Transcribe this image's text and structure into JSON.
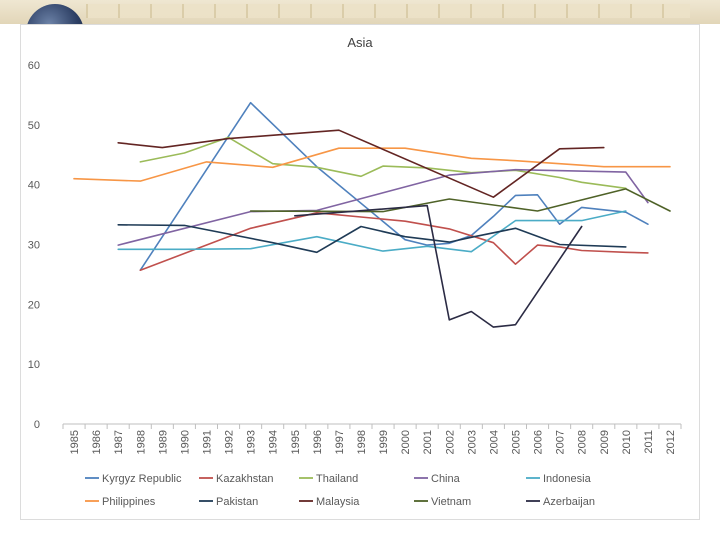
{
  "chart_data": {
    "type": "line",
    "title": "Asia",
    "xlabel": "",
    "ylabel": "",
    "ylim": [
      0,
      60
    ],
    "yticks": [
      "0",
      "10",
      "20",
      "30",
      "40",
      "50",
      "60"
    ],
    "x": [
      "1985",
      "1986",
      "1987",
      "1988",
      "1989",
      "1990",
      "1991",
      "1992",
      "1993",
      "1994",
      "1995",
      "1996",
      "1997",
      "1998",
      "1999",
      "2000",
      "2001",
      "2002",
      "2003",
      "2004",
      "2005",
      "2006",
      "2007",
      "2008",
      "2009",
      "2010",
      "2011",
      "2012"
    ],
    "grid": false,
    "legend_position": "bottom",
    "series": [
      {
        "name": "Kyrgyz Republic",
        "color": "#4f81bd",
        "values": [
          null,
          null,
          null,
          25.7,
          null,
          null,
          null,
          null,
          53.7,
          null,
          null,
          43.0,
          null,
          null,
          null,
          30.8,
          29.9,
          30.2,
          31.5,
          34.7,
          38.2,
          38.3,
          33.4,
          36.2,
          null,
          35.4,
          33.4,
          null
        ]
      },
      {
        "name": "Kazakhstan",
        "color": "#c0504d",
        "values": [
          null,
          null,
          null,
          25.7,
          null,
          null,
          null,
          null,
          32.7,
          null,
          null,
          35.3,
          null,
          null,
          null,
          33.9,
          null,
          32.6,
          null,
          30.3,
          26.7,
          29.9,
          29.6,
          29.0,
          null,
          28.7,
          28.6,
          null
        ]
      },
      {
        "name": "Thailand",
        "color": "#9bbb59",
        "values": [
          null,
          null,
          null,
          43.8,
          null,
          45.3,
          null,
          47.9,
          null,
          43.5,
          null,
          42.9,
          null,
          41.4,
          43.1,
          null,
          42.8,
          null,
          42.0,
          null,
          42.4,
          null,
          41.2,
          40.4,
          null,
          39.4,
          null,
          null
        ]
      },
      {
        "name": "China",
        "color": "#8064a2",
        "values": [
          null,
          null,
          29.9,
          null,
          null,
          null,
          null,
          null,
          35.5,
          null,
          null,
          35.7,
          null,
          null,
          null,
          null,
          null,
          41.6,
          null,
          null,
          42.5,
          null,
          null,
          null,
          null,
          42.1,
          37.0,
          null
        ]
      },
      {
        "name": "Indonesia",
        "color": "#4bacc6",
        "values": [
          null,
          null,
          29.2,
          null,
          null,
          29.2,
          null,
          null,
          29.3,
          null,
          null,
          31.3,
          null,
          null,
          28.9,
          null,
          29.7,
          null,
          28.8,
          null,
          34.0,
          null,
          34.0,
          34.0,
          null,
          35.6,
          null,
          null
        ]
      },
      {
        "name": "Philippines",
        "color": "#f79646",
        "values": [
          41.0,
          null,
          null,
          40.6,
          null,
          null,
          43.8,
          null,
          null,
          42.9,
          null,
          null,
          46.1,
          null,
          null,
          46.1,
          null,
          null,
          44.4,
          null,
          44.0,
          null,
          null,
          null,
          43.0,
          43.0,
          null,
          43.0
        ]
      },
      {
        "name": "Pakistan",
        "color": "#1f3b56",
        "values": [
          null,
          null,
          33.3,
          null,
          null,
          33.2,
          null,
          null,
          null,
          30.3,
          null,
          28.7,
          null,
          33.0,
          null,
          31.3,
          null,
          30.4,
          31.2,
          null,
          32.7,
          null,
          30.0,
          null,
          null,
          29.6,
          null,
          null
        ]
      },
      {
        "name": "Malaysia",
        "color": "#632523",
        "values": [
          null,
          null,
          47.0,
          null,
          46.2,
          null,
          null,
          47.7,
          null,
          null,
          null,
          null,
          49.1,
          null,
          null,
          null,
          null,
          null,
          null,
          37.9,
          null,
          null,
          46.0,
          null,
          46.2,
          null,
          null,
          null
        ]
      },
      {
        "name": "Vietnam",
        "color": "#4f6228",
        "values": [
          null,
          null,
          null,
          null,
          null,
          null,
          null,
          null,
          35.6,
          null,
          null,
          null,
          null,
          null,
          35.5,
          null,
          null,
          37.6,
          null,
          null,
          null,
          35.6,
          null,
          null,
          null,
          39.3,
          null,
          35.6
        ]
      },
      {
        "name": "Azerbaijan",
        "color": "#2b2b44",
        "values": [
          null,
          null,
          null,
          null,
          null,
          null,
          null,
          null,
          null,
          null,
          34.8,
          null,
          null,
          null,
          null,
          null,
          36.5,
          17.4,
          18.8,
          16.2,
          16.6,
          null,
          null,
          33.0,
          null,
          null,
          null,
          null
        ]
      }
    ]
  }
}
